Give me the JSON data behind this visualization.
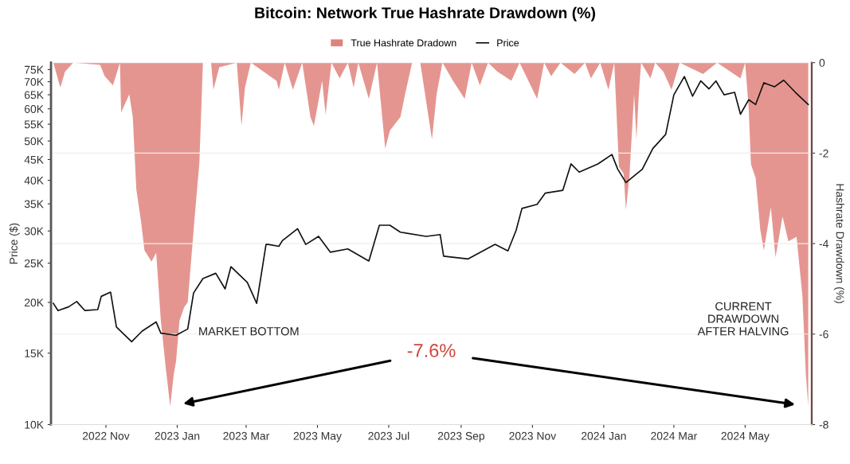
{
  "chart_data": {
    "type": "area",
    "title": "Bitcoin: Network True Hashrate Drawdown (%)",
    "ylabel": "Price ($)",
    "y2label": "Hashrate Drawdown (%)",
    "legend": "top",
    "grid": "y",
    "log": "y",
    "xlim": [
      "2022-09-15",
      "2024-06-27"
    ],
    "xticks": [
      {
        "value": "2022-11-01",
        "label": "2022 Nov"
      },
      {
        "value": "2023-01-01",
        "label": "2023 Jan"
      },
      {
        "value": "2023-03-01",
        "label": "2023 Mar"
      },
      {
        "value": "2023-05-01",
        "label": "2023 May"
      },
      {
        "value": "2023-07-01",
        "label": "2023 Jul"
      },
      {
        "value": "2023-09-01",
        "label": "2023 Sep"
      },
      {
        "value": "2023-11-01",
        "label": "2023 Nov"
      },
      {
        "value": "2024-01-01",
        "label": "2024 Jan"
      },
      {
        "value": "2024-03-01",
        "label": "2024 Mar"
      },
      {
        "value": "2024-05-01",
        "label": "2024 May"
      }
    ],
    "ylim": [
      10000,
      78000
    ],
    "yticks": [
      {
        "value": 10000,
        "label": "10K"
      },
      {
        "value": 15000,
        "label": "15K"
      },
      {
        "value": 20000,
        "label": "20K"
      },
      {
        "value": 25000,
        "label": "25K"
      },
      {
        "value": 30000,
        "label": "30K"
      },
      {
        "value": 35000,
        "label": "35K"
      },
      {
        "value": 40000,
        "label": "40K"
      },
      {
        "value": 45000,
        "label": "45K"
      },
      {
        "value": 50000,
        "label": "50K"
      },
      {
        "value": 55000,
        "label": "55K"
      },
      {
        "value": 60000,
        "label": "60K"
      },
      {
        "value": 65000,
        "label": "65K"
      },
      {
        "value": 70000,
        "label": "70K"
      },
      {
        "value": 75000,
        "label": "75K"
      }
    ],
    "y2lim": [
      -8,
      0
    ],
    "y2ticks": [
      0,
      -2,
      -4,
      -6,
      -8
    ],
    "series": [
      {
        "name": "True Hashrate Dradown",
        "axis": "y2",
        "color": "#e0827c",
        "x": [
          "2022-09-17",
          "2022-09-23",
          "2022-09-27",
          "2022-10-04",
          "2022-10-27",
          "2022-10-31",
          "2022-11-07",
          "2022-11-13",
          "2022-11-14",
          "2022-11-21",
          "2022-11-24",
          "2022-11-27",
          "2022-12-01",
          "2022-12-04",
          "2022-12-10",
          "2022-12-14",
          "2022-12-18",
          "2022-12-22",
          "2022-12-26",
          "2022-12-29",
          "2022-12-31",
          "2023-01-03",
          "2023-01-07",
          "2023-01-10",
          "2023-01-16",
          "2023-01-20",
          "2023-01-23",
          "2023-01-30",
          "2023-02-01",
          "2023-02-06",
          "2023-02-21",
          "2023-02-25",
          "2023-02-28",
          "2023-03-05",
          "2023-03-27",
          "2023-03-29",
          "2023-04-03",
          "2023-04-10",
          "2023-04-18",
          "2023-04-25",
          "2023-04-28",
          "2023-05-05",
          "2023-05-08",
          "2023-05-13",
          "2023-05-20",
          "2023-05-27",
          "2023-06-01",
          "2023-06-05",
          "2023-06-14",
          "2023-06-21",
          "2023-06-28",
          "2023-07-02",
          "2023-07-11",
          "2023-07-15",
          "2023-07-21",
          "2023-07-28",
          "2023-08-02",
          "2023-08-07",
          "2023-08-11",
          "2023-08-16",
          "2023-08-25",
          "2023-09-04",
          "2023-09-10",
          "2023-09-17",
          "2023-09-24",
          "2023-10-02",
          "2023-10-14",
          "2023-10-21",
          "2023-11-05",
          "2023-11-11",
          "2023-11-17",
          "2023-11-25",
          "2023-12-07",
          "2023-12-16",
          "2023-12-21",
          "2023-12-29",
          "2024-01-05",
          "2024-01-10",
          "2024-01-14",
          "2024-01-18",
          "2024-01-20",
          "2024-01-23",
          "2024-01-27",
          "2024-01-29",
          "2024-01-31",
          "2024-02-02",
          "2024-02-10",
          "2024-02-14",
          "2024-02-21",
          "2024-02-28",
          "2024-03-06",
          "2024-03-26",
          "2024-04-07",
          "2024-04-27",
          "2024-05-01",
          "2024-05-04",
          "2024-05-06",
          "2024-05-10",
          "2024-05-14",
          "2024-05-17",
          "2024-05-23",
          "2024-05-27",
          "2024-06-02",
          "2024-06-07",
          "2024-06-14",
          "2024-06-19",
          "2024-06-22",
          "2024-06-24"
        ],
        "values": [
          0,
          -0.55,
          -0.2,
          0,
          -0.05,
          -0.3,
          -0.5,
          0,
          -1.1,
          -0.7,
          -1.2,
          -2.8,
          -3.5,
          -4.15,
          -4.4,
          -4.2,
          -5.7,
          -6.7,
          -7.6,
          -6.9,
          -6.6,
          -5.7,
          -5.4,
          -5.3,
          -3.4,
          -2.2,
          0,
          0,
          -0.6,
          -0.1,
          0,
          -1.4,
          -0.55,
          0,
          -0.4,
          -0.6,
          0,
          -0.6,
          0,
          -1.2,
          -1.4,
          -0.4,
          -1.15,
          0,
          -0.35,
          0,
          -0.55,
          0,
          -0.8,
          0,
          -1.9,
          -1.5,
          -1.2,
          -0.7,
          0,
          0,
          -0.85,
          -1.7,
          -0.7,
          0,
          -0.4,
          -0.8,
          0,
          -0.5,
          0,
          -0.2,
          -0.4,
          0,
          -0.8,
          0,
          -0.3,
          0,
          -0.25,
          0,
          -0.35,
          0,
          -0.6,
          0,
          -2.3,
          -2.45,
          -3.25,
          -2.5,
          -0.7,
          -1.7,
          -0.7,
          0,
          -0.35,
          0,
          -0.2,
          -0.6,
          0,
          -0.25,
          0,
          -0.35,
          0,
          -1.0,
          -2.25,
          -2.55,
          -3.7,
          -4.15,
          -3.2,
          -4.3,
          -3.4,
          -3.95,
          -3.85,
          -5.15,
          -6.9,
          -7.6
        ]
      },
      {
        "name": "Price",
        "type": "line",
        "color": "#111111",
        "x": [
          "2022-09-17",
          "2022-09-21",
          "2022-09-30",
          "2022-10-07",
          "2022-10-14",
          "2022-10-25",
          "2022-10-28",
          "2022-11-05",
          "2022-11-10",
          "2022-11-23",
          "2022-12-02",
          "2022-12-14",
          "2022-12-18",
          "2022-12-31",
          "2023-01-10",
          "2023-01-15",
          "2023-01-23",
          "2023-02-03",
          "2023-02-11",
          "2023-02-16",
          "2023-03-02",
          "2023-03-10",
          "2023-03-15",
          "2023-03-18",
          "2023-03-20",
          "2023-03-29",
          "2023-04-01",
          "2023-04-14",
          "2023-04-21",
          "2023-05-02",
          "2023-05-12",
          "2023-05-27",
          "2023-06-14",
          "2023-06-23",
          "2023-07-02",
          "2023-07-11",
          "2023-08-02",
          "2023-08-14",
          "2023-08-17",
          "2023-09-07",
          "2023-09-30",
          "2023-10-11",
          "2023-10-18",
          "2023-10-23",
          "2023-11-05",
          "2023-11-12",
          "2023-11-27",
          "2023-12-04",
          "2023-12-11",
          "2023-12-27",
          "2024-01-08",
          "2024-01-13",
          "2024-01-20",
          "2024-02-03",
          "2024-02-12",
          "2024-02-23",
          "2024-03-01",
          "2024-03-10",
          "2024-03-17",
          "2024-03-24",
          "2024-03-31",
          "2024-04-06",
          "2024-04-13",
          "2024-04-22",
          "2024-04-27",
          "2024-05-04",
          "2024-05-10",
          "2024-05-17",
          "2024-05-26",
          "2024-06-03",
          "2024-06-13",
          "2024-06-24"
        ],
        "values": [
          19900,
          19100,
          19500,
          20100,
          19100,
          19200,
          20700,
          21200,
          17400,
          16000,
          17000,
          17900,
          16800,
          16600,
          17200,
          21100,
          22900,
          23600,
          21600,
          24500,
          22400,
          19900,
          24500,
          27800,
          27800,
          27500,
          28400,
          30400,
          27800,
          29100,
          26600,
          27100,
          25300,
          31000,
          31000,
          29800,
          29100,
          29400,
          26000,
          25600,
          27800,
          26800,
          30100,
          34100,
          34900,
          37200,
          37800,
          43900,
          41900,
          43900,
          46300,
          42600,
          39500,
          42600,
          47900,
          51900,
          65000,
          72100,
          64500,
          70300,
          67200,
          70300,
          65000,
          65900,
          58200,
          63200,
          61500,
          69600,
          68000,
          70600,
          65900,
          61500
        ]
      }
    ],
    "annotations": [
      "MARKET BOTTOM",
      "-7.6%",
      "CURRENT\nDRAWDOWN\nAFTER HALVING"
    ]
  }
}
